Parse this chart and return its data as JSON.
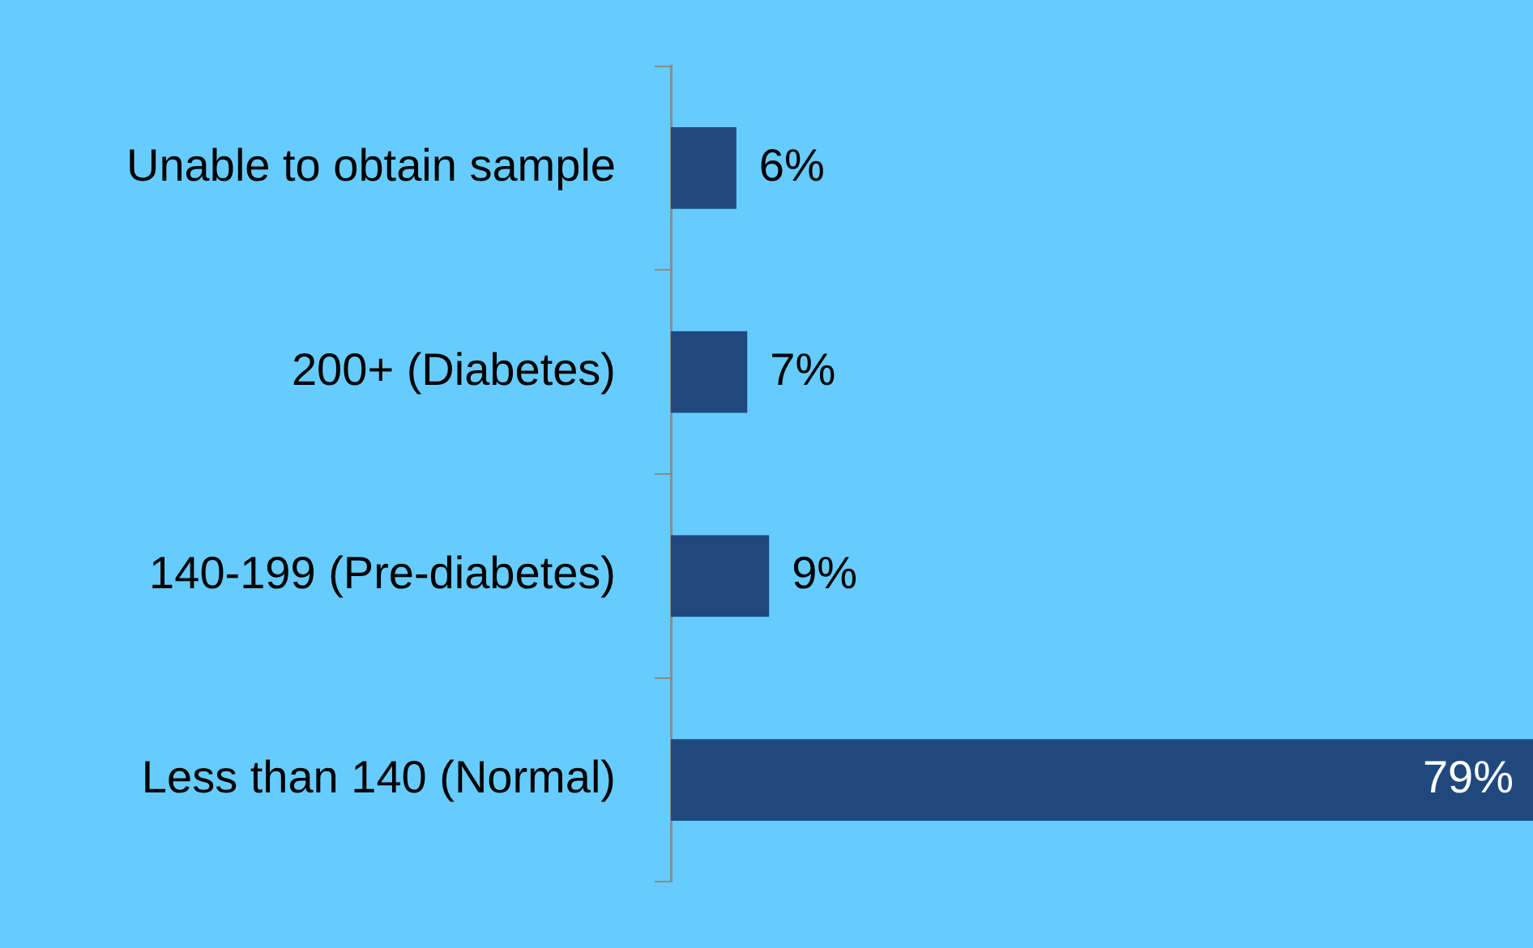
{
  "chart_data": {
    "type": "bar",
    "orientation": "horizontal",
    "categories": [
      "Unable to obtain sample",
      "200+ (Diabetes)",
      "140-199 (Pre-diabetes)",
      "Less than 140 (Normal)"
    ],
    "values": [
      6,
      7,
      9,
      79
    ],
    "value_labels": [
      "6%",
      "7%",
      "9%",
      "79%"
    ],
    "color": "#1f497d",
    "xlim": [
      0,
      79
    ],
    "legend": false,
    "tick_labels": "y"
  }
}
